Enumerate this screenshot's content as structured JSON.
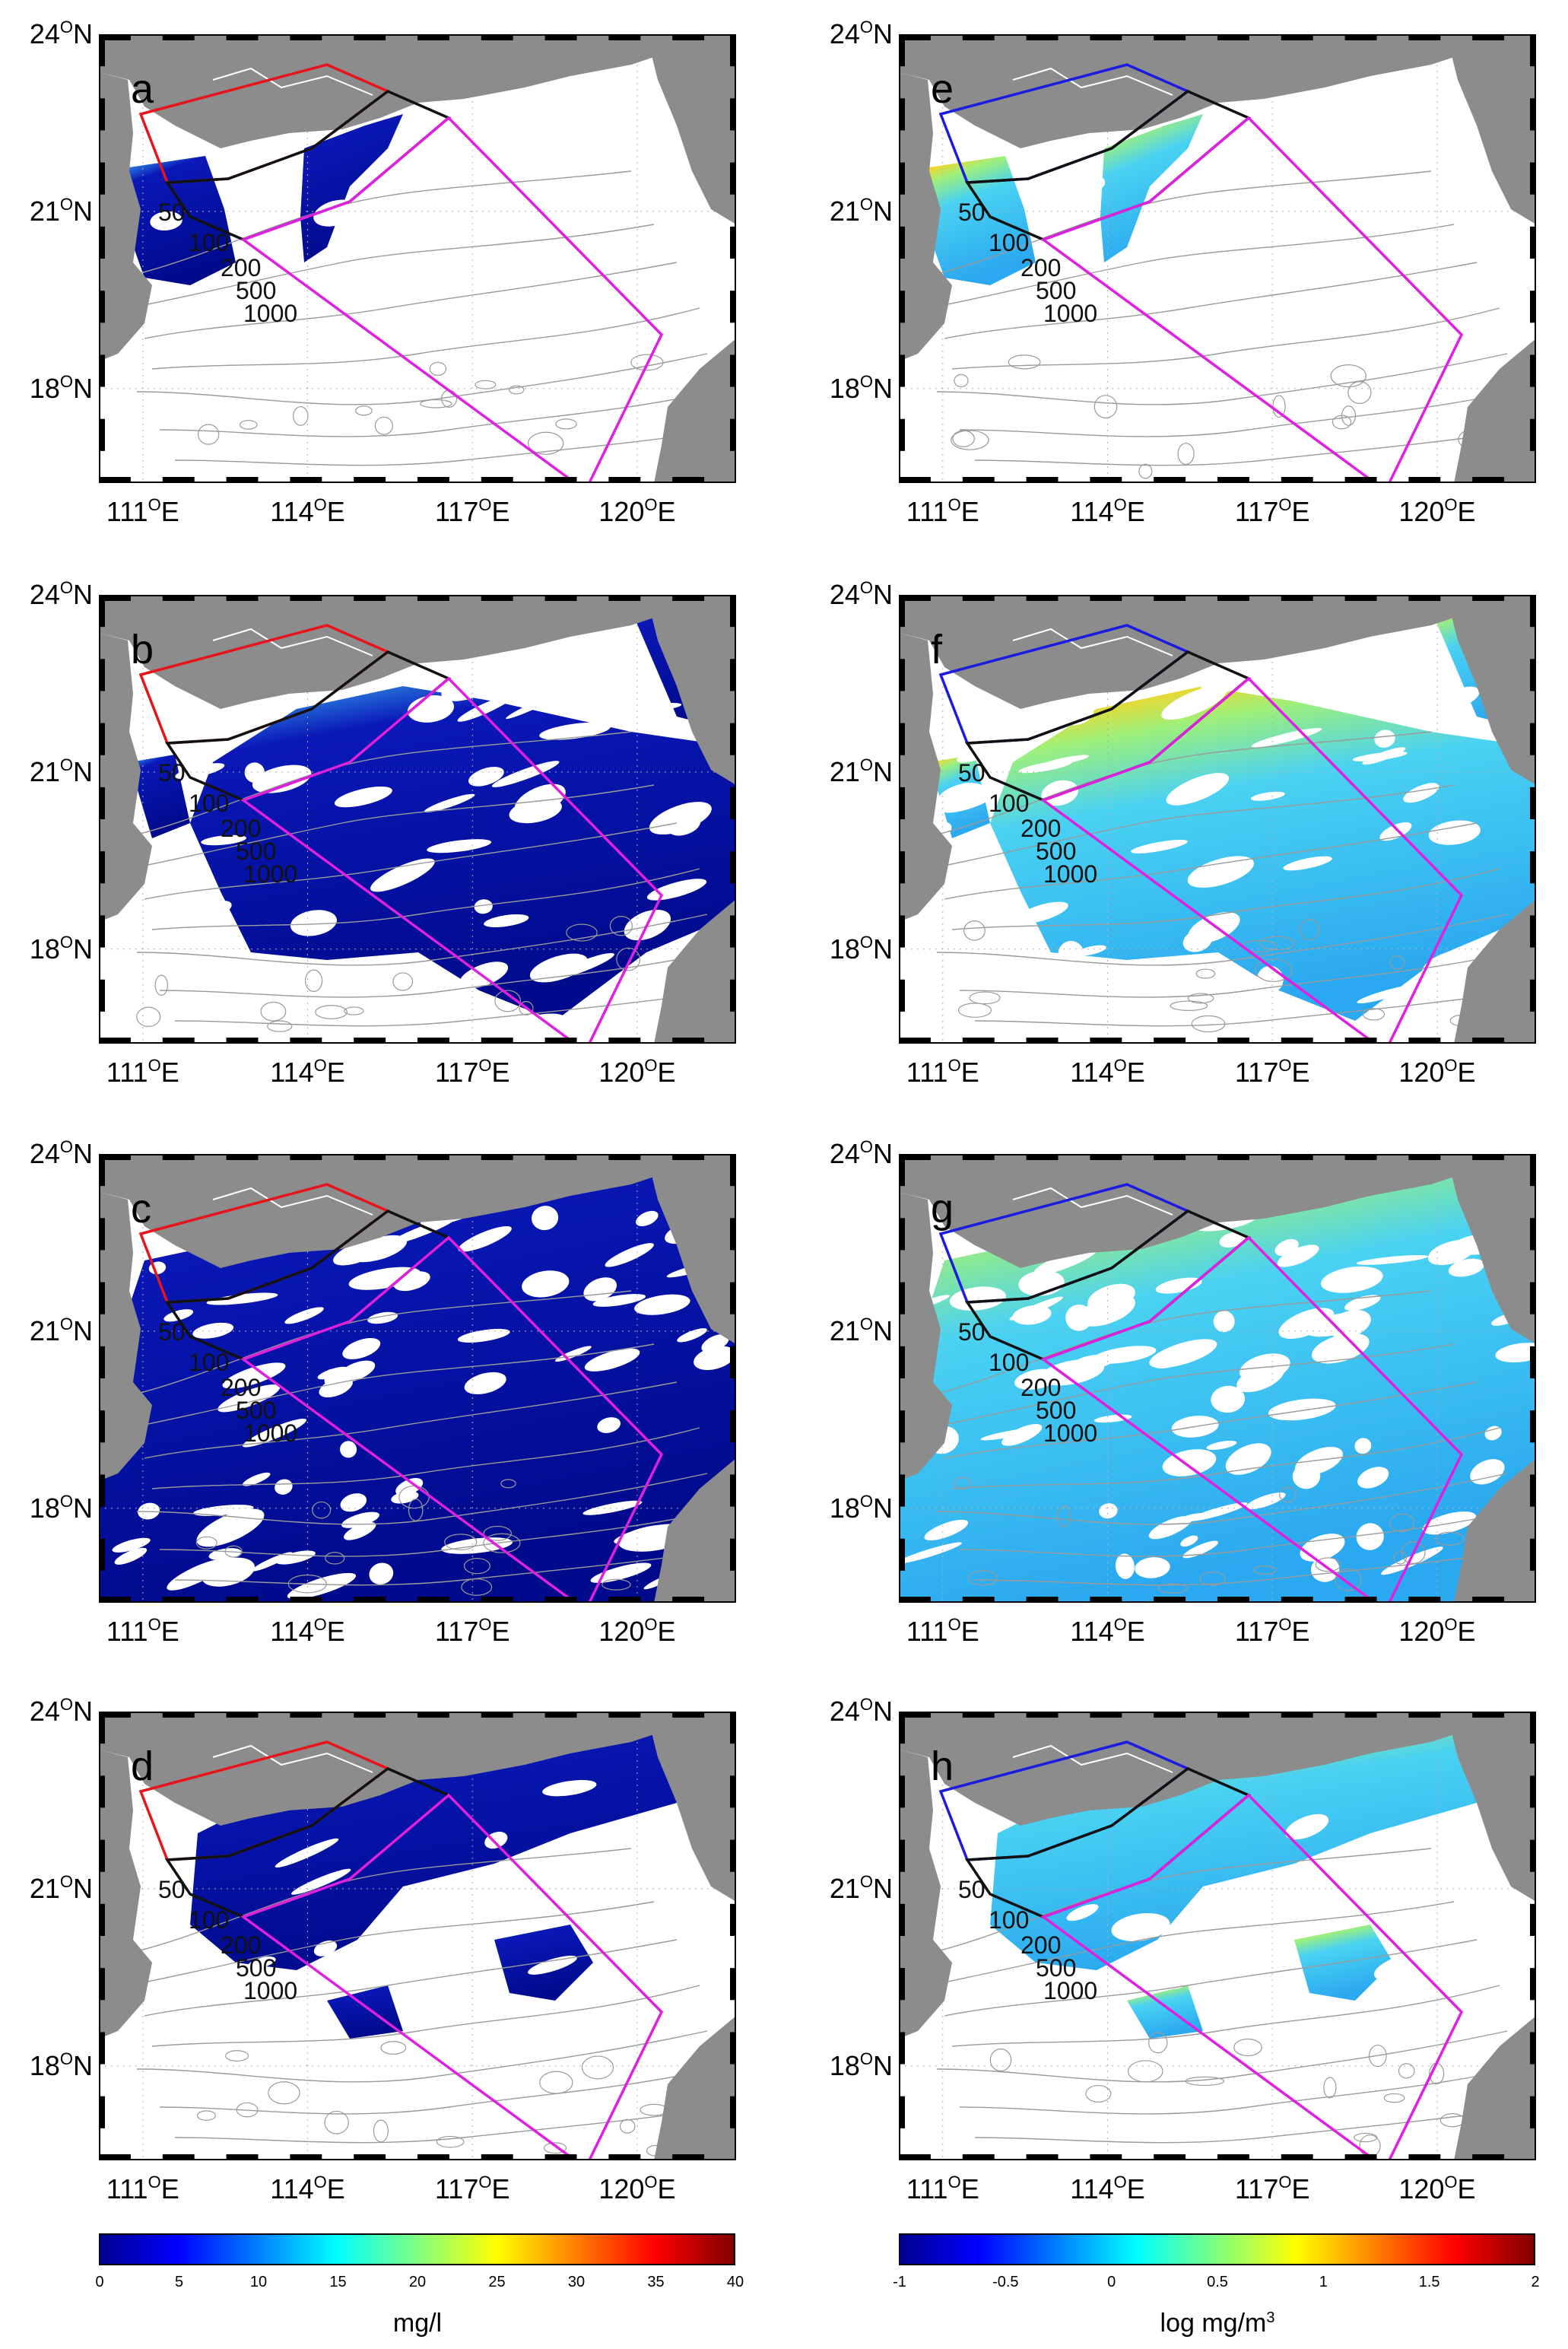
{
  "panels": [
    {
      "id": "a",
      "label": "a",
      "region_color": "#e8141c",
      "coverage": "sparse-a",
      "field": "tsm"
    },
    {
      "id": "b",
      "label": "b",
      "region_color": "#e8141c",
      "coverage": "wide",
      "field": "tsm"
    },
    {
      "id": "c",
      "label": "c",
      "region_color": "#e8141c",
      "coverage": "full",
      "field": "tsm"
    },
    {
      "id": "d",
      "label": "d",
      "region_color": "#e8141c",
      "coverage": "partial-d",
      "field": "tsm"
    },
    {
      "id": "e",
      "label": "e",
      "region_color": "#1c1ce0",
      "coverage": "sparse-a",
      "field": "chl"
    },
    {
      "id": "f",
      "label": "f",
      "region_color": "#1c1ce0",
      "coverage": "wide",
      "field": "chl"
    },
    {
      "id": "g",
      "label": "g",
      "region_color": "#1c1ce0",
      "coverage": "full",
      "field": "chl"
    },
    {
      "id": "h",
      "label": "h",
      "region_color": "#1c1ce0",
      "coverage": "partial-d",
      "field": "chl"
    }
  ],
  "lat_ticks": [
    {
      "value": 24,
      "num": "24",
      "deg": "O",
      "hemi": "N"
    },
    {
      "value": 21,
      "num": "21",
      "deg": "O",
      "hemi": "N"
    },
    {
      "value": 18,
      "num": "18",
      "deg": "O",
      "hemi": "N"
    }
  ],
  "lon_ticks": [
    {
      "value": 111,
      "num": "111",
      "deg": "O",
      "hemi": "E"
    },
    {
      "value": 114,
      "num": "114",
      "deg": "O",
      "hemi": "E"
    },
    {
      "value": 117,
      "num": "117",
      "deg": "O",
      "hemi": "E"
    },
    {
      "value": 120,
      "num": "120",
      "deg": "O",
      "hemi": "E"
    }
  ],
  "depth_labels": [
    "50",
    "100",
    "200",
    "500",
    "1000"
  ],
  "colors": {
    "land": "#8c8c8c",
    "contour": "#9a9a9a",
    "black_box": "#111111",
    "magenta_box": "#e020e0"
  },
  "colorbar_left": {
    "ticks": [
      "0",
      "5",
      "10",
      "15",
      "20",
      "25",
      "30",
      "35",
      "40"
    ],
    "unit": "mg/l"
  },
  "colorbar_right": {
    "ticks": [
      "-1",
      "-0.5",
      "0",
      "0.5",
      "1",
      "1.5",
      "2"
    ],
    "unit": "log mg/m",
    "unit_sup": "3"
  }
}
